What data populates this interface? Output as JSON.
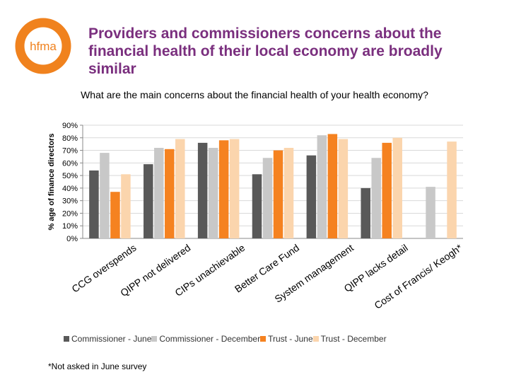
{
  "logo": {
    "text": "hfma",
    "color": "#f0821e"
  },
  "title": "Providers and commissioners concerns about the financial health of their local economy are broadly similar",
  "footnote": "*Not asked in June survey",
  "chart_data": {
    "type": "bar",
    "title": "What are the main concerns about the financial health of your health economy?",
    "xlabel": "",
    "ylabel": "% age of finance directors",
    "ylim": [
      0,
      90
    ],
    "yticks": [
      "0%",
      "10%",
      "20%",
      "30%",
      "40%",
      "50%",
      "60%",
      "70%",
      "80%",
      "90%"
    ],
    "grid": true,
    "legend_position": "bottom",
    "categories": [
      "CCG overspends",
      "QIPP not delivered",
      "CIPs unachievable",
      "Better Care Fund",
      "System management",
      "QIPP lacks detail",
      "Cost of Francis/ Keogh*"
    ],
    "series": [
      {
        "name": "Commissioner - June",
        "color": "#595959",
        "values": [
          54,
          59,
          76,
          51,
          66,
          40,
          null
        ]
      },
      {
        "name": "Commissioner - December",
        "color": "#c8c8c8",
        "values": [
          68,
          72,
          72,
          64,
          82,
          64,
          41
        ]
      },
      {
        "name": "Trust - June",
        "color": "#f58220",
        "values": [
          37,
          71,
          78,
          70,
          83,
          76,
          null
        ]
      },
      {
        "name": "Trust - December",
        "color": "#fbd5ad",
        "values": [
          51,
          79,
          79,
          72,
          79,
          80,
          77
        ]
      }
    ]
  }
}
